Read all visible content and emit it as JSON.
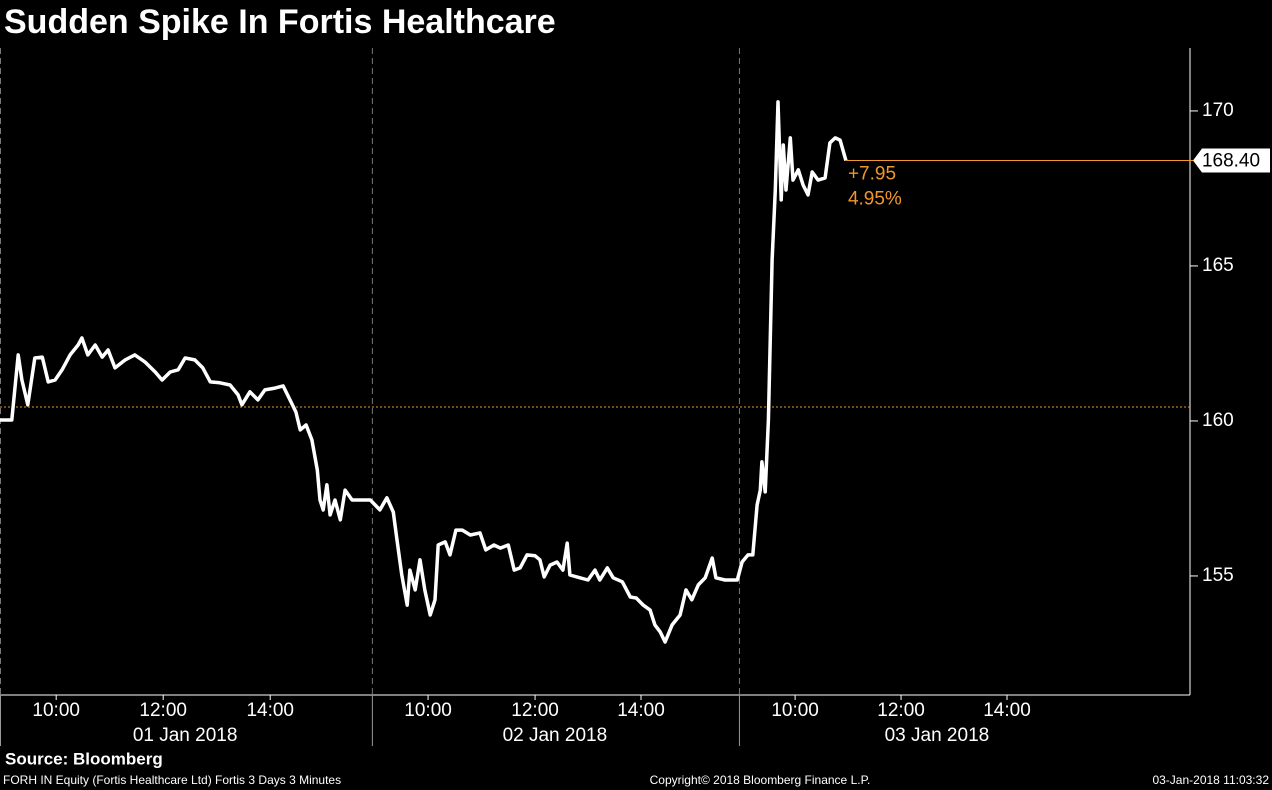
{
  "chart_data": {
    "type": "line",
    "title": "Sudden Spike In Fortis Healthcare",
    "source": "Source: Bloomberg",
    "footer": {
      "left": "FORH IN Equity (Fortis Healthcare Ltd) Fortis 3 Days 3 Minutes",
      "center": "Copyright© 2018 Bloomberg Finance L.P.",
      "right": "03-Jan-2018 11:03:32"
    },
    "color": "#ffffff",
    "x": [
      0,
      0.22,
      0.34,
      0.41,
      0.52,
      0.65,
      0.79,
      0.9,
      1.03,
      1.16,
      1.31,
      1.46,
      1.53,
      1.64,
      1.78,
      1.91,
      2.02,
      2.15,
      2.34,
      2.52,
      2.71,
      2.9,
      3.03,
      3.18,
      3.33,
      3.46,
      3.64,
      3.79,
      3.93,
      4.11,
      4.3,
      4.45,
      4.52,
      4.67,
      4.82,
      4.95,
      5.14,
      5.29,
      5.42,
      5.53,
      5.61,
      5.72,
      5.83,
      5.93,
      5.98,
      6.04,
      6.11,
      6.17,
      6.26,
      6.36,
      6.45,
      6.58,
      6.73,
      6.92,
      7.1,
      7.23,
      7.35,
      7.42,
      7.51,
      7.61,
      7.66,
      7.76,
      7.85,
      7.94,
      8.04,
      8.13,
      8.19,
      8.32,
      8.41,
      8.52,
      8.64,
      8.79,
      8.97,
      9.08,
      9.23,
      9.35,
      9.5,
      9.61,
      9.72,
      9.85,
      10.0,
      10.09,
      10.17,
      10.28,
      10.41,
      10.52,
      10.6,
      10.65,
      10.84,
      10.99,
      11.12,
      11.21,
      11.35,
      11.46,
      11.63,
      11.78,
      11.89,
      12.02,
      12.15,
      12.24,
      12.34,
      12.43,
      12.56,
      12.71,
      12.82,
      12.93,
      13.05,
      13.18,
      13.31,
      13.38,
      13.55,
      13.78,
      13.87,
      13.98,
      14.07,
      14.15,
      14.21,
      14.24,
      14.3,
      14.36,
      14.43,
      14.49,
      14.54,
      14.6,
      14.64,
      14.69,
      14.77,
      14.82,
      14.92,
      15.01,
      15.1,
      15.18,
      15.29,
      15.42,
      15.51,
      15.61,
      15.7,
      15.81
    ],
    "values": [
      160.03,
      160.03,
      162.13,
      161.32,
      160.52,
      162.03,
      162.06,
      161.26,
      161.32,
      161.65,
      162.13,
      162.45,
      162.68,
      162.13,
      162.45,
      162.06,
      162.29,
      161.71,
      161.97,
      162.13,
      161.9,
      161.58,
      161.32,
      161.58,
      161.65,
      162.03,
      161.97,
      161.71,
      161.26,
      161.23,
      161.16,
      160.84,
      160.52,
      160.94,
      160.68,
      161.0,
      161.06,
      161.13,
      160.68,
      160.29,
      159.71,
      159.87,
      159.39,
      158.42,
      157.45,
      157.13,
      157.94,
      156.97,
      157.45,
      156.81,
      157.77,
      157.45,
      157.45,
      157.45,
      157.13,
      157.52,
      157.06,
      156.16,
      155.03,
      154.06,
      155.19,
      154.55,
      155.52,
      154.55,
      153.74,
      154.23,
      156.0,
      156.1,
      155.68,
      156.48,
      156.48,
      156.32,
      156.39,
      155.84,
      156.0,
      155.9,
      156.0,
      155.19,
      155.26,
      155.68,
      155.65,
      155.52,
      154.97,
      155.35,
      155.45,
      155.19,
      156.06,
      155.03,
      154.94,
      154.87,
      155.19,
      154.87,
      155.26,
      154.94,
      154.81,
      154.32,
      154.29,
      154.06,
      153.9,
      153.42,
      153.19,
      152.87,
      153.42,
      153.74,
      154.55,
      154.23,
      154.71,
      154.94,
      155.58,
      154.94,
      154.87,
      154.87,
      155.45,
      155.68,
      155.68,
      157.29,
      157.77,
      158.68,
      157.71,
      160.03,
      165.19,
      167.45,
      170.29,
      167.13,
      168.9,
      167.45,
      169.13,
      167.77,
      168.1,
      167.61,
      167.29,
      168.03,
      167.77,
      167.84,
      168.97,
      169.13,
      169.06,
      168.4
    ],
    "xlim": [
      0,
      22.24
    ],
    "xticks": [
      {
        "value": 1.05,
        "label": "10:00"
      },
      {
        "value": 3.05,
        "label": "12:00"
      },
      {
        "value": 5.05,
        "label": "14:00"
      },
      {
        "value": 8.0,
        "label": "10:00"
      },
      {
        "value": 10.0,
        "label": "12:00"
      },
      {
        "value": 11.98,
        "label": "14:00"
      },
      {
        "value": 14.86,
        "label": "10:00"
      },
      {
        "value": 16.84,
        "label": "12:00"
      },
      {
        "value": 18.82,
        "label": "14:00"
      }
    ],
    "day_labels": [
      {
        "value": 3.46,
        "label": "01 Jan 2018"
      },
      {
        "value": 10.37,
        "label": "02 Jan 2018"
      },
      {
        "value": 17.51,
        "label": "03 Jan 2018"
      }
    ],
    "day_separators": [
      0,
      6.95,
      13.81
    ],
    "ylim": [
      151.16,
      172.03
    ],
    "yticks": [
      155,
      160,
      165,
      170
    ],
    "reference_line": 160.45,
    "reference_color": "#f0962d",
    "last_price": {
      "value": 168.4,
      "label": "168.40"
    },
    "change": "+7.95",
    "change_pct": "4.95%"
  }
}
